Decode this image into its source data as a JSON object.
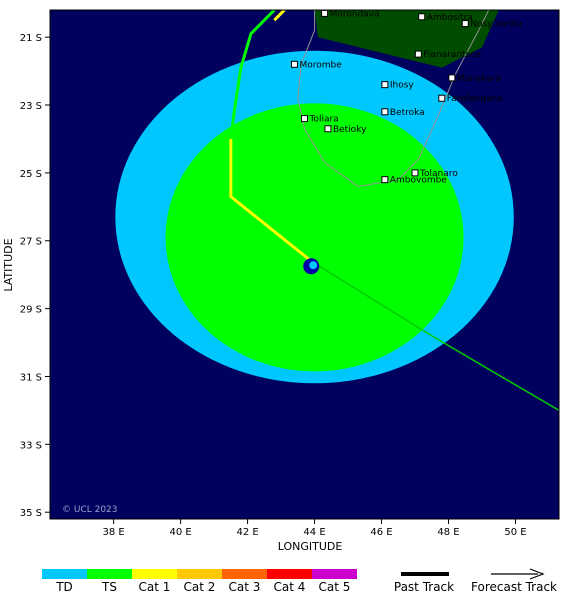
{
  "map": {
    "x_axis_title": "LONGITUDE",
    "y_axis_title": "LATITUDE",
    "copyright": "© UCL 2023",
    "lon_range": [
      36.1,
      51.3
    ],
    "lat_range": [
      -35.2,
      -20.2
    ],
    "lon_ticks": [
      {
        "value": 38,
        "label": "38 E"
      },
      {
        "value": 40,
        "label": "40 E"
      },
      {
        "value": 42,
        "label": "42 E"
      },
      {
        "value": 44,
        "label": "44 E"
      },
      {
        "value": 46,
        "label": "46 E"
      },
      {
        "value": 48,
        "label": "48 E"
      },
      {
        "value": 50,
        "label": "50 E"
      }
    ],
    "lat_ticks": [
      {
        "value": -21,
        "label": "21 S"
      },
      {
        "value": -23,
        "label": "23 S"
      },
      {
        "value": -25,
        "label": "25 S"
      },
      {
        "value": -27,
        "label": "27 S"
      },
      {
        "value": -29,
        "label": "29 S"
      },
      {
        "value": -31,
        "label": "31 S"
      },
      {
        "value": -33,
        "label": "33 S"
      },
      {
        "value": -35,
        "label": "35 S"
      }
    ],
    "colors": {
      "ocean": "#00005f",
      "land": "#004d00",
      "td_wind": "#00c8ff",
      "ts_wind": "#00ff00",
      "track_td": "#00ff00",
      "track_cat1": "#ffff00",
      "forecast": "#00cc00",
      "storm": "#0000aa",
      "coast": "#909090"
    },
    "wind_fields": [
      {
        "name": "TD",
        "center": [
          44.0,
          -26.3
        ],
        "radius_lon": 5.95,
        "radius_lat": 4.9
      },
      {
        "name": "TS",
        "center": [
          44.0,
          -26.9
        ],
        "radius_lon": 4.45,
        "radius_lat": 3.95
      }
    ],
    "storm_position": [
      43.9,
      -27.75
    ],
    "past_track": [
      {
        "points": [
          [
            42.8,
            -20.2
          ],
          [
            42.1,
            -20.9
          ],
          [
            41.8,
            -21.9
          ],
          [
            41.6,
            -23.2
          ],
          [
            41.5,
            -24.0
          ]
        ],
        "category": "TS"
      },
      {
        "points": [
          [
            43.1,
            -20.2
          ],
          [
            42.8,
            -20.5
          ]
        ],
        "category": "Cat 1"
      },
      {
        "points": [
          [
            41.5,
            -24.0
          ],
          [
            41.5,
            -25.7
          ],
          [
            43.9,
            -27.6
          ]
        ],
        "category": "Cat 1"
      }
    ],
    "forecast_track": [
      [
        43.9,
        -27.6
      ],
      [
        47.5,
        -29.8
      ],
      [
        51.3,
        -32.0
      ]
    ],
    "cities": [
      {
        "name": "Morondava",
        "lon": 44.3,
        "lat": -20.3
      },
      {
        "name": "Ambositra",
        "lon": 47.2,
        "lat": -20.4
      },
      {
        "name": "Nosy-Varika",
        "lon": 48.5,
        "lat": -20.6
      },
      {
        "name": "Fianarantsoa",
        "lon": 47.1,
        "lat": -21.5
      },
      {
        "name": "Morombe",
        "lon": 43.4,
        "lat": -21.8
      },
      {
        "name": "Manakara",
        "lon": 48.1,
        "lat": -22.2
      },
      {
        "name": "Ihosy",
        "lon": 46.1,
        "lat": -22.4
      },
      {
        "name": "Farafangana",
        "lon": 47.8,
        "lat": -22.8
      },
      {
        "name": "Betroka",
        "lon": 46.1,
        "lat": -23.2
      },
      {
        "name": "Toliara",
        "lon": 43.7,
        "lat": -23.4
      },
      {
        "name": "Betioky",
        "lon": 44.4,
        "lat": -23.7
      },
      {
        "name": "Tolanaro",
        "lon": 47.0,
        "lat": -25.0
      },
      {
        "name": "Ambovombe",
        "lon": 46.1,
        "lat": -25.2
      }
    ]
  },
  "legend": {
    "categories": [
      {
        "label": "TD",
        "color": "#00c8ff"
      },
      {
        "label": "TS",
        "color": "#00ff00"
      },
      {
        "label": "Cat 1",
        "color": "#ffff00"
      },
      {
        "label": "Cat 2",
        "color": "#ffc800"
      },
      {
        "label": "Cat 3",
        "color": "#ff6400"
      },
      {
        "label": "Cat 4",
        "color": "#ff0000"
      },
      {
        "label": "Cat 5",
        "color": "#cc00cc"
      }
    ],
    "past_track_label": "Past Track",
    "forecast_track_label": "Forecast Track"
  }
}
